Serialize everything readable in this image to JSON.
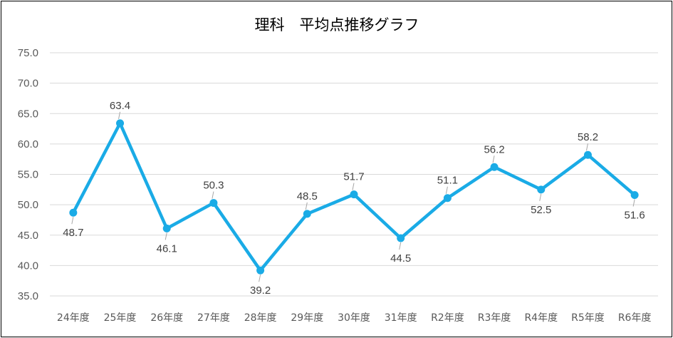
{
  "chart_data": {
    "type": "line",
    "title": "理科　平均点推移グラフ",
    "xlabel": "",
    "ylabel": "",
    "categories": [
      "24年度",
      "25年度",
      "26年度",
      "27年度",
      "28年度",
      "29年度",
      "30年度",
      "31年度",
      "R2年度",
      "R3年度",
      "R4年度",
      "R5年度",
      "R6年度"
    ],
    "values": [
      48.7,
      63.4,
      46.1,
      50.3,
      39.2,
      48.5,
      51.7,
      44.5,
      51.1,
      56.2,
      52.5,
      58.2,
      51.6
    ],
    "value_labels": [
      "48.7",
      "63.4",
      "46.1",
      "50.3",
      "39.2",
      "48.5",
      "51.7",
      "44.5",
      "51.1",
      "56.2",
      "52.5",
      "58.2",
      "51.6"
    ],
    "label_position": [
      "below",
      "above",
      "below",
      "above",
      "below",
      "above",
      "above",
      "below",
      "above",
      "above",
      "below",
      "above",
      "below"
    ],
    "ylim": [
      35,
      75
    ],
    "yticks": [
      "75.0",
      "70.0",
      "65.0",
      "60.0",
      "55.0",
      "50.0",
      "45.0",
      "40.0",
      "35.0"
    ],
    "grid": true,
    "line_color": "#1AABE6",
    "grid_color": "#D9D9D9"
  }
}
